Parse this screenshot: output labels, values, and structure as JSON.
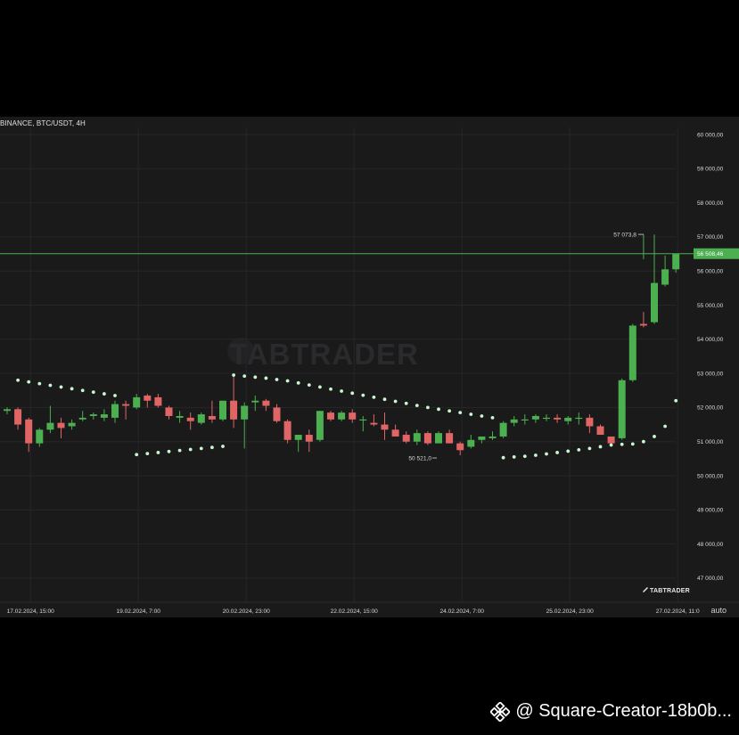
{
  "chart_data": {
    "type": "candlestick",
    "title": "BINANCE, BTC/USDT, 4H",
    "ylim": [
      46500,
      60300
    ],
    "y_ticks": [
      47000,
      48000,
      49000,
      50000,
      51000,
      52000,
      53000,
      54000,
      55000,
      56000,
      57000,
      58000,
      59000,
      60000
    ],
    "y_tick_labels": [
      "47 000,00",
      "48 000,00",
      "49 000,00",
      "50 000,00",
      "51 000,00",
      "52 000,00",
      "53 000,00",
      "54 000,00",
      "55 000,00",
      "56 000,00",
      "57 000,00",
      "58 000,00",
      "59 000,00",
      "60 000,00"
    ],
    "x_ticks": [
      "17.02.2024, 15:00",
      "19.02.2024, 7:00",
      "20.02.2024, 23:00",
      "22.02.2024, 15:00",
      "24.02.2024, 7:00",
      "25.02.2024, 23:00",
      "27.02.2024, 11:0"
    ],
    "x_tick_index": [
      2,
      12,
      22,
      32,
      42,
      52,
      62
    ],
    "last_price": 56508.46,
    "last_price_label": "56 508,46",
    "high_marker": {
      "index": 59,
      "value": 57073.8,
      "label": "57 073,8"
    },
    "low_marker": {
      "index": 40,
      "value": 50521.0,
      "label": "50 521,0"
    },
    "colors": {
      "up": "#4caf50",
      "down": "#e06666",
      "sar": "#c9f7cf",
      "grid": "#262628",
      "last_price": "#4caf50"
    },
    "candles": [
      [
        51900,
        52000,
        51800,
        51950
      ],
      [
        51950,
        52000,
        51350,
        51500
      ],
      [
        51650,
        51700,
        50700,
        50950
      ],
      [
        50950,
        51400,
        50850,
        51350
      ],
      [
        51350,
        52050,
        51250,
        51550
      ],
      [
        51550,
        51700,
        51100,
        51400
      ],
      [
        51450,
        51650,
        51350,
        51550
      ],
      [
        51650,
        51900,
        51600,
        51700
      ],
      [
        51750,
        51850,
        51650,
        51800
      ],
      [
        51700,
        51950,
        51600,
        51800
      ],
      [
        51700,
        52200,
        51550,
        52100
      ],
      [
        52100,
        52200,
        51650,
        52050
      ],
      [
        52000,
        52400,
        51950,
        52300
      ],
      [
        52350,
        52400,
        52000,
        52200
      ],
      [
        52300,
        52400,
        52000,
        52050
      ],
      [
        52000,
        52050,
        51650,
        51750
      ],
      [
        51700,
        51900,
        51550,
        51750
      ],
      [
        51700,
        51850,
        51350,
        51600
      ],
      [
        51550,
        51850,
        51500,
        51800
      ],
      [
        51750,
        52200,
        51550,
        51650
      ],
      [
        51650,
        52200,
        51600,
        52200
      ],
      [
        52200,
        52950,
        51400,
        51650
      ],
      [
        51650,
        52150,
        50800,
        52050
      ],
      [
        52150,
        52350,
        51900,
        52200
      ],
      [
        52200,
        52250,
        51900,
        52050
      ],
      [
        52000,
        52100,
        51550,
        51600
      ],
      [
        51600,
        51650,
        50950,
        51050
      ],
      [
        51050,
        51200,
        50700,
        51200
      ],
      [
        51200,
        51350,
        50700,
        51000
      ],
      [
        51050,
        51900,
        51000,
        51900
      ],
      [
        51850,
        51900,
        51600,
        51650
      ],
      [
        51650,
        51900,
        51600,
        51850
      ],
      [
        51850,
        51950,
        51550,
        51650
      ],
      [
        51650,
        51750,
        51300,
        51650
      ],
      [
        51550,
        51800,
        51450,
        51500
      ],
      [
        51500,
        51850,
        51050,
        51350
      ],
      [
        51350,
        51500,
        51150,
        51150
      ],
      [
        51200,
        51300,
        50950,
        51000
      ],
      [
        51000,
        51350,
        50900,
        51250
      ],
      [
        51250,
        51300,
        50900,
        50950
      ],
      [
        50950,
        51300,
        50950,
        51250
      ],
      [
        51250,
        51350,
        50950,
        50950
      ],
      [
        50950,
        51000,
        50600,
        50750
      ],
      [
        50850,
        51200,
        50800,
        51050
      ],
      [
        51050,
        51150,
        50950,
        51150
      ],
      [
        51100,
        51300,
        51050,
        51150
      ],
      [
        51150,
        51600,
        51100,
        51550
      ],
      [
        51550,
        51750,
        51450,
        51650
      ],
      [
        51650,
        51800,
        51500,
        51650
      ],
      [
        51650,
        51800,
        51550,
        51750
      ],
      [
        51700,
        51800,
        51600,
        51700
      ],
      [
        51700,
        51800,
        51550,
        51650
      ],
      [
        51600,
        51750,
        51500,
        51700
      ],
      [
        51700,
        51850,
        51500,
        51700
      ],
      [
        51700,
        51800,
        51250,
        51450
      ],
      [
        51450,
        51500,
        51200,
        51200
      ],
      [
        51150,
        51150,
        50850,
        50950
      ],
      [
        51100,
        52850,
        51050,
        52800
      ],
      [
        52800,
        54450,
        52750,
        54400
      ],
      [
        54450,
        54800,
        54350,
        54400
      ],
      [
        54500,
        57070,
        54450,
        55650
      ],
      [
        55600,
        56450,
        55550,
        56050
      ],
      [
        56050,
        56500,
        55950,
        56500
      ]
    ],
    "sar": [
      {
        "i": -1,
        "v": 51350
      },
      {
        "i": 1,
        "v": 52800
      },
      {
        "i": 2,
        "v": 52750
      },
      {
        "i": 3,
        "v": 52700
      },
      {
        "i": 4,
        "v": 52650
      },
      {
        "i": 5,
        "v": 52600
      },
      {
        "i": 6,
        "v": 52550
      },
      {
        "i": 7,
        "v": 52500
      },
      {
        "i": 8,
        "v": 52450
      },
      {
        "i": 9,
        "v": 52400
      },
      {
        "i": 10,
        "v": 52350
      },
      {
        "i": 12,
        "v": 50620
      },
      {
        "i": 13,
        "v": 50650
      },
      {
        "i": 14,
        "v": 50680
      },
      {
        "i": 15,
        "v": 50710
      },
      {
        "i": 16,
        "v": 50740
      },
      {
        "i": 17,
        "v": 50770
      },
      {
        "i": 18,
        "v": 50800
      },
      {
        "i": 19,
        "v": 50830
      },
      {
        "i": 20,
        "v": 50860
      },
      {
        "i": 21,
        "v": 52950
      },
      {
        "i": 22,
        "v": 52920
      },
      {
        "i": 23,
        "v": 52890
      },
      {
        "i": 24,
        "v": 52860
      },
      {
        "i": 25,
        "v": 52820
      },
      {
        "i": 26,
        "v": 52780
      },
      {
        "i": 27,
        "v": 52720
      },
      {
        "i": 28,
        "v": 52660
      },
      {
        "i": 29,
        "v": 52600
      },
      {
        "i": 30,
        "v": 52540
      },
      {
        "i": 31,
        "v": 52480
      },
      {
        "i": 32,
        "v": 52420
      },
      {
        "i": 33,
        "v": 52360
      },
      {
        "i": 34,
        "v": 52300
      },
      {
        "i": 35,
        "v": 52240
      },
      {
        "i": 36,
        "v": 52180
      },
      {
        "i": 37,
        "v": 52120
      },
      {
        "i": 38,
        "v": 52060
      },
      {
        "i": 39,
        "v": 52000
      },
      {
        "i": 40,
        "v": 51950
      },
      {
        "i": 41,
        "v": 51900
      },
      {
        "i": 42,
        "v": 51850
      },
      {
        "i": 43,
        "v": 51800
      },
      {
        "i": 44,
        "v": 51750
      },
      {
        "i": 45,
        "v": 51700
      },
      {
        "i": 46,
        "v": 50530
      },
      {
        "i": 47,
        "v": 50550
      },
      {
        "i": 48,
        "v": 50570
      },
      {
        "i": 49,
        "v": 50600
      },
      {
        "i": 50,
        "v": 50640
      },
      {
        "i": 51,
        "v": 50680
      },
      {
        "i": 52,
        "v": 50720
      },
      {
        "i": 53,
        "v": 50760
      },
      {
        "i": 54,
        "v": 50800
      },
      {
        "i": 55,
        "v": 50850
      },
      {
        "i": 56,
        "v": 50900
      },
      {
        "i": 57,
        "v": 50920
      },
      {
        "i": 58,
        "v": 50930
      },
      {
        "i": 59,
        "v": 51000
      },
      {
        "i": 60,
        "v": 51150
      },
      {
        "i": 61,
        "v": 51450
      },
      {
        "i": 62,
        "v": 52200
      }
    ],
    "x_label_extra": "auto"
  },
  "brand": {
    "name": "TABTRADER"
  },
  "watermark": {
    "text": "TABTRADER"
  },
  "credit": {
    "text": "@ Square-Creator-18b0b..."
  }
}
